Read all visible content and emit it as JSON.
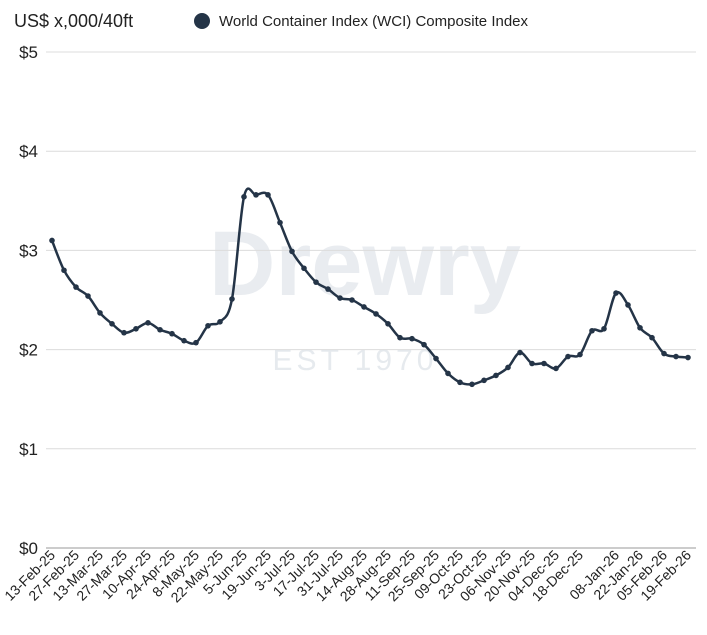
{
  "chart_data": {
    "type": "line",
    "title": "",
    "ylabel": "US$ x,000/40ft",
    "xlabel": "",
    "ylim": [
      0,
      5
    ],
    "yticks": [
      0,
      1,
      2,
      3,
      4,
      5
    ],
    "ytick_labels": [
      "$0",
      "$1",
      "$2",
      "$3",
      "$4",
      "$5"
    ],
    "grid": "horizontal",
    "legend_position": "top",
    "colors": {
      "series": "#243447",
      "grid": "#dcdcdc",
      "axis": "#999999"
    },
    "x_tick_labels": [
      "13-Feb-25",
      "27-Feb-25",
      "13-Mar-25",
      "27-Mar-25",
      "10-Apr-25",
      "24-Apr-25",
      "8-May-25",
      "22-May-25",
      "5-Jun-25",
      "19-Jun-25",
      "3-Jul-25",
      "17-Jul-25",
      "31-Jul-25",
      "14-Aug-25",
      "28-Aug-25",
      "11-Sep-25",
      "25-Sep-25",
      "09-Oct-25",
      "23-Oct-25",
      "06-Nov-25",
      "20-Nov-25",
      "04-Dec-25",
      "18-Dec-25",
      "08-Jan-26",
      "22-Jan-26",
      "05-Feb-26",
      "19-Feb-26"
    ],
    "x": [
      "13-Feb-25",
      "20-Feb-25",
      "27-Feb-25",
      "06-Mar-25",
      "13-Mar-25",
      "20-Mar-25",
      "27-Mar-25",
      "03-Apr-25",
      "10-Apr-25",
      "17-Apr-25",
      "24-Apr-25",
      "01-May-25",
      "8-May-25",
      "15-May-25",
      "22-May-25",
      "29-May-25",
      "5-Jun-25",
      "12-Jun-25",
      "19-Jun-25",
      "26-Jun-25",
      "3-Jul-25",
      "10-Jul-25",
      "17-Jul-25",
      "24-Jul-25",
      "31-Jul-25",
      "07-Aug-25",
      "14-Aug-25",
      "21-Aug-25",
      "28-Aug-25",
      "04-Sep-25",
      "11-Sep-25",
      "18-Sep-25",
      "25-Sep-25",
      "02-Oct-25",
      "09-Oct-25",
      "16-Oct-25",
      "23-Oct-25",
      "30-Oct-25",
      "06-Nov-25",
      "13-Nov-25",
      "20-Nov-25",
      "27-Nov-25",
      "04-Dec-25",
      "11-Dec-25",
      "18-Dec-25",
      "25-Dec-25",
      "01-Jan-26",
      "08-Jan-26",
      "15-Jan-26",
      "22-Jan-26",
      "29-Jan-26",
      "05-Feb-26",
      "12-Feb-26",
      "19-Feb-26"
    ],
    "series": [
      {
        "name": "World Container Index (WCI) Composite Index",
        "values": [
          3.1,
          2.8,
          2.63,
          2.54,
          2.37,
          2.26,
          2.17,
          2.21,
          2.27,
          2.2,
          2.16,
          2.09,
          2.07,
          2.24,
          2.28,
          2.51,
          3.54,
          3.56,
          3.56,
          3.28,
          2.99,
          2.82,
          2.68,
          2.61,
          2.52,
          2.5,
          2.43,
          2.36,
          2.26,
          2.12,
          2.11,
          2.05,
          1.91,
          1.76,
          1.67,
          1.65,
          1.69,
          1.74,
          1.82,
          1.97,
          1.86,
          1.86,
          1.81,
          1.93,
          1.95,
          2.19,
          2.21,
          2.57,
          2.45,
          2.22,
          2.12,
          1.96,
          1.93,
          1.92
        ]
      }
    ]
  }
}
